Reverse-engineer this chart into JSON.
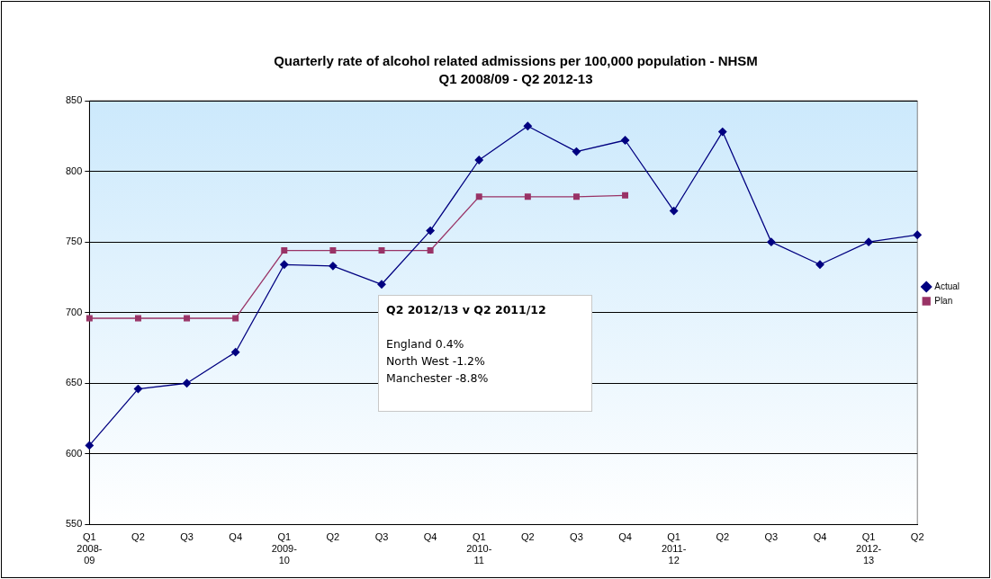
{
  "chart_data": {
    "type": "line",
    "title": "Quarterly rate of alcohol related admissions per 100,000 population - NHSM",
    "subtitle": "Q1 2008/09 - Q2 2012-13",
    "categories": [
      "Q1\n2008-\n09",
      "Q2",
      "Q3",
      "Q4",
      "Q1\n2009-\n10",
      "Q2",
      "Q3",
      "Q4",
      "Q1\n2010-\n11",
      "Q2",
      "Q3",
      "Q4",
      "Q1\n2011-\n12",
      "Q2",
      "Q3",
      "Q4",
      "Q1\n2012-\n13",
      "Q2"
    ],
    "series": [
      {
        "name": "Actual",
        "color": "#000080",
        "marker": "diamond",
        "values": [
          606,
          646,
          650,
          672,
          734,
          733,
          720,
          758,
          808,
          832,
          814,
          822,
          772,
          828,
          750,
          734,
          750,
          755
        ]
      },
      {
        "name": "Plan",
        "color": "#993366",
        "marker": "square",
        "values": [
          696,
          696,
          696,
          696,
          744,
          744,
          744,
          744,
          782,
          782,
          782,
          783,
          null,
          null,
          null,
          null,
          null,
          null
        ]
      }
    ],
    "ylim": [
      550,
      850
    ],
    "yticks": [
      550,
      600,
      650,
      700,
      750,
      800,
      850
    ],
    "grid": "y",
    "legend": "right",
    "line_style": "solid",
    "annotations": [
      "Q2 2012/13  v  Q2 2011/12",
      "England  0.4%",
      "North West  -1.2%",
      "Manchester  -8.8%"
    ]
  }
}
